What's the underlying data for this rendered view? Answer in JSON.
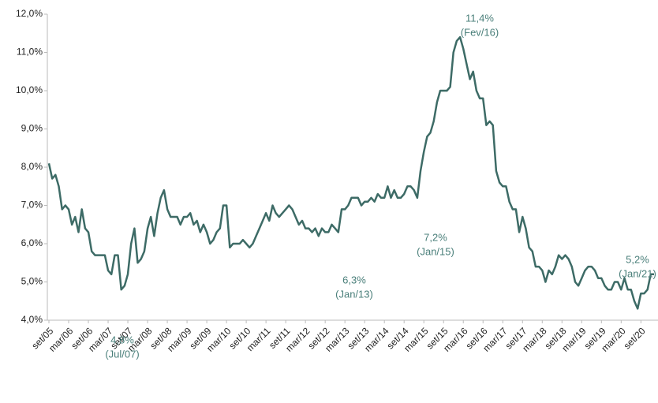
{
  "chart_data": {
    "type": "line",
    "categories": [
      "set/05",
      null,
      null,
      null,
      null,
      null,
      "mar/06",
      null,
      null,
      null,
      null,
      null,
      "set/06",
      null,
      null,
      null,
      null,
      null,
      "mar/07",
      null,
      null,
      null,
      null,
      null,
      "set/07",
      null,
      null,
      null,
      null,
      null,
      "mar/08",
      null,
      null,
      null,
      null,
      null,
      "set/08",
      null,
      null,
      null,
      null,
      null,
      "mar/09",
      null,
      null,
      null,
      null,
      null,
      "set/09",
      null,
      null,
      null,
      null,
      null,
      "mar/10",
      null,
      null,
      null,
      null,
      null,
      "set/10",
      null,
      null,
      null,
      null,
      null,
      "mar/11",
      null,
      null,
      null,
      null,
      null,
      "set/11",
      null,
      null,
      null,
      null,
      null,
      "mar/12",
      null,
      null,
      null,
      null,
      null,
      "set/12",
      null,
      null,
      null,
      null,
      null,
      "mar/13",
      null,
      null,
      null,
      null,
      null,
      "set/13",
      null,
      null,
      null,
      null,
      null,
      "mar/14",
      null,
      null,
      null,
      null,
      null,
      "set/14",
      null,
      null,
      null,
      null,
      null,
      "mar/15",
      null,
      null,
      null,
      null,
      null,
      "set/15",
      null,
      null,
      null,
      null,
      null,
      "mar/16",
      null,
      null,
      null,
      null,
      null,
      "set/16",
      null,
      null,
      null,
      null,
      null,
      "mar/17",
      null,
      null,
      null,
      null,
      null,
      "set/17",
      null,
      null,
      null,
      null,
      null,
      "mar/18",
      null,
      null,
      null,
      null,
      null,
      "set/18",
      null,
      null,
      null,
      null,
      null,
      "mar/19",
      null,
      null,
      null,
      null,
      null,
      "set/19",
      null,
      null,
      null,
      null,
      null,
      "mar/20",
      null,
      null,
      null,
      null,
      null,
      "set/20",
      null,
      null,
      null,
      null
    ],
    "series": [
      {
        "color": "#3d6b66",
        "values": [
          8.1,
          7.7,
          7.8,
          7.5,
          6.9,
          7.0,
          6.9,
          6.5,
          6.7,
          6.3,
          6.9,
          6.4,
          6.3,
          5.8,
          5.7,
          5.7,
          5.7,
          5.7,
          5.3,
          5.2,
          5.7,
          5.7,
          4.8,
          4.9,
          5.2,
          6.0,
          6.4,
          5.5,
          5.6,
          5.8,
          6.4,
          6.7,
          6.2,
          6.8,
          7.2,
          7.4,
          6.9,
          6.7,
          6.7,
          6.7,
          6.5,
          6.7,
          6.7,
          6.8,
          6.5,
          6.6,
          6.3,
          6.5,
          6.3,
          6.0,
          6.1,
          6.3,
          6.4,
          7.0,
          7.0,
          5.9,
          6.0,
          6.0,
          6.0,
          6.1,
          6.0,
          5.9,
          6.0,
          6.2,
          6.4,
          6.6,
          6.8,
          6.6,
          7.0,
          6.8,
          6.7,
          6.8,
          6.9,
          7.0,
          6.9,
          6.7,
          6.5,
          6.6,
          6.4,
          6.4,
          6.3,
          6.4,
          6.2,
          6.4,
          6.3,
          6.3,
          6.5,
          6.4,
          6.3,
          6.9,
          6.9,
          7.0,
          7.2,
          7.2,
          7.2,
          7.0,
          7.1,
          7.1,
          7.2,
          7.1,
          7.3,
          7.2,
          7.2,
          7.5,
          7.2,
          7.4,
          7.2,
          7.2,
          7.3,
          7.5,
          7.5,
          7.4,
          7.2,
          7.9,
          8.4,
          8.8,
          8.9,
          9.2,
          9.7,
          10.0,
          10.0,
          10.0,
          10.1,
          11.0,
          11.3,
          11.4,
          11.1,
          10.7,
          10.3,
          10.5,
          10.0,
          9.8,
          9.8,
          9.1,
          9.2,
          9.1,
          7.9,
          7.6,
          7.5,
          7.5,
          7.1,
          6.9,
          6.9,
          6.3,
          6.7,
          6.4,
          5.9,
          5.8,
          5.4,
          5.4,
          5.3,
          5.0,
          5.3,
          5.2,
          5.4,
          5.7,
          5.6,
          5.7,
          5.6,
          5.4,
          5.0,
          4.9,
          5.1,
          5.3,
          5.4,
          5.4,
          5.3,
          5.1,
          5.1,
          4.9,
          4.8,
          4.8,
          5.0,
          5.0,
          4.8,
          5.1,
          4.8,
          4.8,
          4.5,
          4.3,
          4.7,
          4.7,
          4.8,
          5.2,
          5.2
        ]
      }
    ],
    "ylim": [
      4,
      12
    ],
    "yticks": [
      {
        "value": 4,
        "label": "4,0%"
      },
      {
        "value": 5,
        "label": "5,0%"
      },
      {
        "value": 6,
        "label": "6,0%"
      },
      {
        "value": 7,
        "label": "7,0%"
      },
      {
        "value": 8,
        "label": "8,0%"
      },
      {
        "value": 9,
        "label": "9,0%"
      },
      {
        "value": 10,
        "label": "10,0%"
      },
      {
        "value": 11,
        "label": "11,0%"
      },
      {
        "value": 12,
        "label": "12,0%"
      }
    ],
    "grid": false,
    "annotations": [
      {
        "value": "4,8%",
        "date": "(Jul/07)"
      },
      {
        "value": "6,3%",
        "date": "(Jan/13)"
      },
      {
        "value": "7,2%",
        "date": "(Jan/15)"
      },
      {
        "value": "11,4%",
        "date": "(Fev/16)"
      },
      {
        "value": "5,2%",
        "date": "(Jan/21)"
      }
    ]
  }
}
